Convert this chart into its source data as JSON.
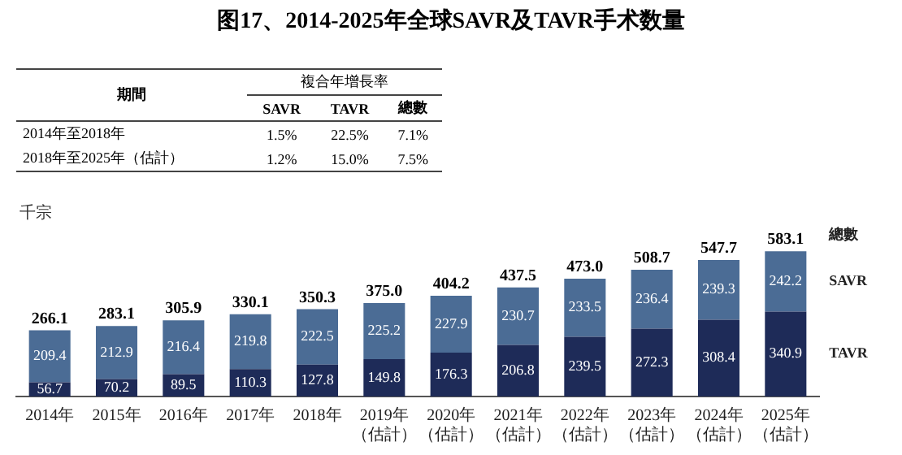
{
  "chart_data": {
    "type": "bar",
    "title": "图17、2014-2025年全球SAVR及TAVR手术数量",
    "ylabel": "千宗",
    "categories": [
      "2014年",
      "2015年",
      "2016年",
      "2017年",
      "2018年",
      "2019年（估計）",
      "2020年（估計）",
      "2021年（估計）",
      "2022年（估計）",
      "2023年（估計）",
      "2024年（估計）",
      "2025年（估計）"
    ],
    "stacked": true,
    "series": [
      {
        "name": "TAVR",
        "color": "#1e2b58",
        "values": [
          56.7,
          70.2,
          89.5,
          110.3,
          127.8,
          149.8,
          176.3,
          206.8,
          239.5,
          272.3,
          308.4,
          340.9
        ]
      },
      {
        "name": "SAVR",
        "color": "#4b6c95",
        "values": [
          209.4,
          212.9,
          216.4,
          219.8,
          222.5,
          225.2,
          227.9,
          230.7,
          233.5,
          236.4,
          239.3,
          242.2
        ]
      }
    ],
    "data_labels": true,
    "totals": [
      "266.1",
      "283.1",
      "305.9",
      "330.1",
      "350.3",
      "375.0",
      "404.2",
      "437.5",
      "473.0",
      "508.7",
      "547.7",
      "583.1"
    ],
    "annotations": [
      "期間",
      "複合年增長率",
      "SAVR",
      "TAVR",
      "總數",
      "2014年至2018年",
      "1.5%",
      "22.5%",
      "7.1%",
      "2018年至2025年（估計）",
      "1.2%",
      "15.0%",
      "7.5%",
      "總數"
    ],
    "grid": false,
    "legend": false
  }
}
